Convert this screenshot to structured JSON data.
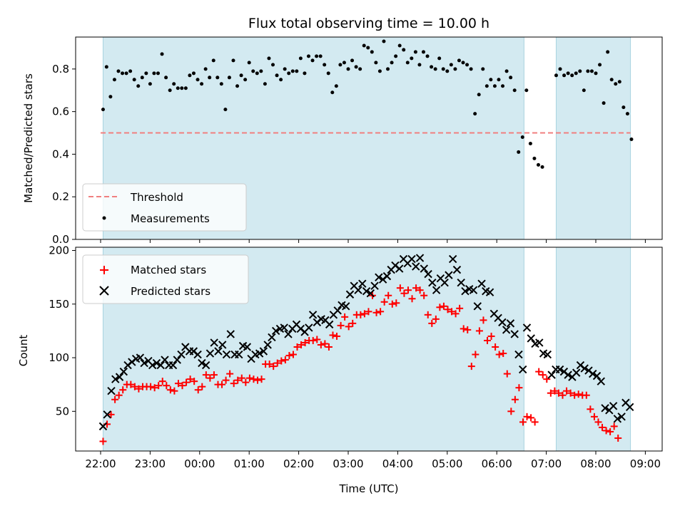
{
  "title": "Flux total observing time = 10.00 h",
  "colors": {
    "shade": "#d3eaf1",
    "shade_edge": "#a9d3e0",
    "threshold": "#f07f7f",
    "matched": "#ff0000",
    "predicted": "#000000",
    "measurement": "#000000"
  },
  "chart_data": [
    {
      "type": "scatter",
      "ylabel": "Matched/Predicted stars",
      "ylim": [
        0,
        0.95
      ],
      "yticks": [
        "0.0",
        "0.2",
        "0.4",
        "0.6",
        "0.8"
      ],
      "ytick_values": [
        0,
        0.2,
        0.4,
        0.6,
        0.8
      ],
      "xlim": [
        -0.55,
        11.3
      ],
      "xticks": [
        0,
        1,
        2,
        3,
        4,
        5,
        6,
        7,
        8,
        9
      ],
      "legend": {
        "placement": "lower-left",
        "threshold_label": "Threshold",
        "measurements_label": "Measurements"
      },
      "threshold": 0.5,
      "threshold_x": [
        0,
        10.7
      ],
      "shaded_intervals": [
        [
          0.05,
          8.55
        ],
        [
          9.2,
          10.7
        ]
      ],
      "measurements": [
        [
          0.05,
          0.61
        ],
        [
          0.12,
          0.81
        ],
        [
          0.2,
          0.67
        ],
        [
          0.28,
          0.75
        ],
        [
          0.36,
          0.79
        ],
        [
          0.44,
          0.78
        ],
        [
          0.52,
          0.78
        ],
        [
          0.6,
          0.79
        ],
        [
          0.68,
          0.75
        ],
        [
          0.76,
          0.72
        ],
        [
          0.84,
          0.76
        ],
        [
          0.92,
          0.78
        ],
        [
          1.0,
          0.73
        ],
        [
          1.08,
          0.78
        ],
        [
          1.16,
          0.78
        ],
        [
          1.24,
          0.87
        ],
        [
          1.32,
          0.76
        ],
        [
          1.4,
          0.7
        ],
        [
          1.48,
          0.73
        ],
        [
          1.56,
          0.71
        ],
        [
          1.64,
          0.71
        ],
        [
          1.72,
          0.71
        ],
        [
          1.8,
          0.77
        ],
        [
          1.88,
          0.78
        ],
        [
          1.96,
          0.75
        ],
        [
          2.04,
          0.73
        ],
        [
          2.12,
          0.8
        ],
        [
          2.2,
          0.76
        ],
        [
          2.28,
          0.84
        ],
        [
          2.36,
          0.76
        ],
        [
          2.44,
          0.73
        ],
        [
          2.52,
          0.61
        ],
        [
          2.6,
          0.76
        ],
        [
          2.68,
          0.84
        ],
        [
          2.76,
          0.72
        ],
        [
          2.84,
          0.77
        ],
        [
          2.92,
          0.75
        ],
        [
          3.0,
          0.83
        ],
        [
          3.08,
          0.79
        ],
        [
          3.16,
          0.78
        ],
        [
          3.24,
          0.79
        ],
        [
          3.32,
          0.73
        ],
        [
          3.4,
          0.85
        ],
        [
          3.48,
          0.82
        ],
        [
          3.56,
          0.77
        ],
        [
          3.64,
          0.75
        ],
        [
          3.72,
          0.8
        ],
        [
          3.8,
          0.78
        ],
        [
          3.88,
          0.79
        ],
        [
          3.96,
          0.79
        ],
        [
          4.04,
          0.85
        ],
        [
          4.12,
          0.78
        ],
        [
          4.2,
          0.86
        ],
        [
          4.28,
          0.84
        ],
        [
          4.36,
          0.86
        ],
        [
          4.44,
          0.86
        ],
        [
          4.52,
          0.82
        ],
        [
          4.6,
          0.78
        ],
        [
          4.68,
          0.69
        ],
        [
          4.76,
          0.72
        ],
        [
          4.84,
          0.82
        ],
        [
          4.92,
          0.83
        ],
        [
          5.0,
          0.8
        ],
        [
          5.08,
          0.84
        ],
        [
          5.16,
          0.81
        ],
        [
          5.24,
          0.8
        ],
        [
          5.32,
          0.91
        ],
        [
          5.4,
          0.9
        ],
        [
          5.48,
          0.88
        ],
        [
          5.56,
          0.83
        ],
        [
          5.64,
          0.79
        ],
        [
          5.72,
          0.93
        ],
        [
          5.8,
          0.8
        ],
        [
          5.88,
          0.83
        ],
        [
          5.96,
          0.86
        ],
        [
          6.04,
          0.91
        ],
        [
          6.12,
          0.89
        ],
        [
          6.2,
          0.83
        ],
        [
          6.28,
          0.85
        ],
        [
          6.36,
          0.88
        ],
        [
          6.44,
          0.82
        ],
        [
          6.52,
          0.88
        ],
        [
          6.6,
          0.86
        ],
        [
          6.68,
          0.81
        ],
        [
          6.76,
          0.8
        ],
        [
          6.84,
          0.85
        ],
        [
          6.92,
          0.8
        ],
        [
          7.0,
          0.79
        ],
        [
          7.08,
          0.82
        ],
        [
          7.16,
          0.8
        ],
        [
          7.24,
          0.84
        ],
        [
          7.32,
          0.83
        ],
        [
          7.4,
          0.82
        ],
        [
          7.48,
          0.8
        ],
        [
          7.56,
          0.59
        ],
        [
          7.64,
          0.68
        ],
        [
          7.72,
          0.8
        ],
        [
          7.8,
          0.72
        ],
        [
          7.88,
          0.75
        ],
        [
          7.96,
          0.72
        ],
        [
          8.04,
          0.75
        ],
        [
          8.12,
          0.72
        ],
        [
          8.2,
          0.79
        ],
        [
          8.28,
          0.76
        ],
        [
          8.36,
          0.7
        ],
        [
          8.44,
          0.41
        ],
        [
          8.52,
          0.48
        ],
        [
          8.6,
          0.7
        ],
        [
          8.68,
          0.45
        ],
        [
          8.76,
          0.38
        ],
        [
          8.84,
          0.35
        ],
        [
          8.92,
          0.34
        ],
        [
          9.2,
          0.77
        ],
        [
          9.28,
          0.8
        ],
        [
          9.36,
          0.77
        ],
        [
          9.44,
          0.78
        ],
        [
          9.52,
          0.77
        ],
        [
          9.6,
          0.78
        ],
        [
          9.68,
          0.79
        ],
        [
          9.76,
          0.7
        ],
        [
          9.84,
          0.79
        ],
        [
          9.92,
          0.79
        ],
        [
          10.0,
          0.78
        ],
        [
          10.08,
          0.82
        ],
        [
          10.16,
          0.64
        ],
        [
          10.24,
          0.88
        ],
        [
          10.32,
          0.75
        ],
        [
          10.4,
          0.73
        ],
        [
          10.48,
          0.74
        ],
        [
          10.56,
          0.62
        ],
        [
          10.64,
          0.59
        ],
        [
          10.72,
          0.47
        ]
      ]
    },
    {
      "type": "scatter",
      "xlabel": "Time (UTC)",
      "ylabel": "Count",
      "ylim": [
        13,
        203
      ],
      "yticks": [
        "50",
        "100",
        "150",
        "200"
      ],
      "ytick_values": [
        50,
        100,
        150,
        200
      ],
      "xlim": [
        -0.55,
        11.3
      ],
      "xticks": [
        0,
        1,
        2,
        3,
        4,
        5,
        6,
        7,
        8,
        9
      ],
      "xtick_labels": [
        "22:00",
        "23:00",
        "00:00",
        "01:00",
        "02:00",
        "03:00",
        "04:00",
        "05:00",
        "06:00",
        "07:00",
        "08:00",
        "09:00"
      ],
      "legend": {
        "placement": "upper-left",
        "matched_label": "Matched stars",
        "predicted_label": "Predicted stars"
      },
      "shaded_intervals": [
        [
          0.05,
          8.55
        ],
        [
          9.2,
          10.7
        ]
      ],
      "series": [
        {
          "name": "Matched stars",
          "marker": "+",
          "x_start": 0.05,
          "x_step": 0.08,
          "values": [
            22,
            38,
            47,
            61,
            65,
            70,
            75,
            75,
            73,
            71,
            73,
            73,
            73,
            72,
            74,
            78,
            74,
            70,
            69,
            76,
            74,
            77,
            80,
            78,
            70,
            73,
            84,
            81,
            84,
            75,
            75,
            79,
            85,
            76,
            79,
            81,
            77,
            81,
            80,
            79,
            80,
            94,
            94,
            92,
            95,
            97,
            98,
            102,
            103,
            110,
            112,
            114,
            116,
            116,
            117,
            112,
            113,
            110,
            121,
            120,
            130,
            138,
            129,
            132,
            140,
            140,
            141,
            143,
            158,
            142,
            143,
            152,
            158,
            150,
            151,
            165,
            160,
            163,
            155,
            165,
            163,
            158,
            140,
            132,
            136,
            147,
            148,
            145,
            143,
            141,
            146,
            127,
            126,
            92,
            103,
            125,
            135,
            116,
            120,
            110,
            103,
            104,
            85,
            50,
            61,
            72,
            40,
            45,
            44,
            40,
            87,
            84,
            80,
            67,
            69,
            67,
            65,
            69,
            67,
            65,
            66,
            65,
            65,
            52,
            45,
            40,
            35,
            32,
            31,
            36,
            25
          ],
          "x_override": {
            "0": 0.05,
            "1": 0.12,
            "2": 0.2
          }
        },
        {
          "name": "Predicted stars",
          "marker": "x",
          "values": [
            36,
            47,
            69,
            80,
            82,
            87,
            93,
            96,
            99,
            100,
            95,
            97,
            93,
            95,
            93,
            98,
            93,
            93,
            98,
            103,
            110,
            106,
            106,
            103,
            95,
            93,
            104,
            114,
            106,
            112,
            103,
            122,
            103,
            103,
            111,
            110,
            99,
            103,
            104,
            106,
            112,
            119,
            125,
            127,
            128,
            122,
            127,
            131,
            127,
            124,
            128,
            140,
            133,
            136,
            135,
            131,
            140,
            144,
            149,
            148,
            159,
            167,
            163,
            169,
            162,
            160,
            167,
            175,
            173,
            176,
            182,
            186,
            183,
            192,
            188,
            192,
            185,
            193,
            183,
            178,
            170,
            163,
            174,
            170,
            177,
            192,
            182,
            170,
            162,
            164,
            163,
            148,
            169,
            162,
            161,
            141,
            137,
            133,
            126,
            132,
            122,
            103,
            89,
            128,
            118,
            113,
            114,
            104,
            103,
            84,
            89,
            89,
            87,
            84,
            82,
            86,
            93,
            90,
            88,
            85,
            83,
            78,
            53,
            51,
            55,
            43,
            45,
            58,
            54
          ],
          "x_start": 0.05,
          "x_step": 0.0831
        }
      ]
    }
  ]
}
